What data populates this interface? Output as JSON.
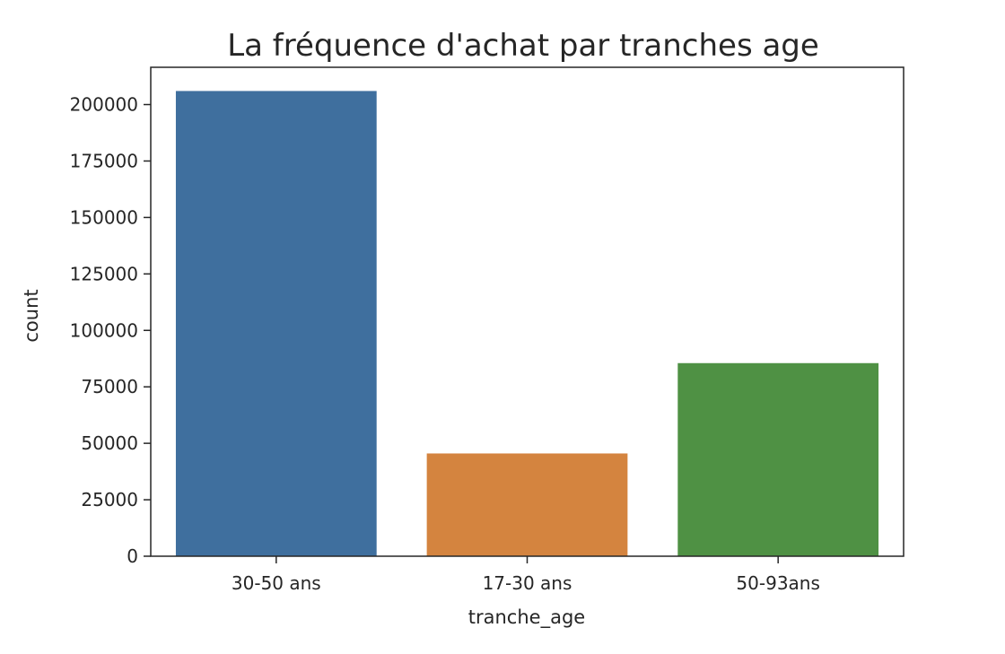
{
  "chart_data": {
    "type": "bar",
    "title": "La fréquence d'achat par tranches age",
    "xlabel": "tranche_age",
    "ylabel": "count",
    "categories": [
      "30-50 ans",
      "17-30 ans",
      "50-93ans"
    ],
    "values": [
      206000,
      45500,
      85500
    ],
    "colors": [
      "#3f6f9e",
      "#d4843f",
      "#4f9144"
    ],
    "ylim": [
      0,
      216500
    ],
    "yticks": [
      0,
      25000,
      50000,
      75000,
      100000,
      125000,
      150000,
      175000,
      200000
    ],
    "ytick_labels": [
      "0",
      "25000",
      "50000",
      "75000",
      "100000",
      "125000",
      "150000",
      "175000",
      "200000"
    ],
    "grid": false,
    "legend": "none"
  }
}
